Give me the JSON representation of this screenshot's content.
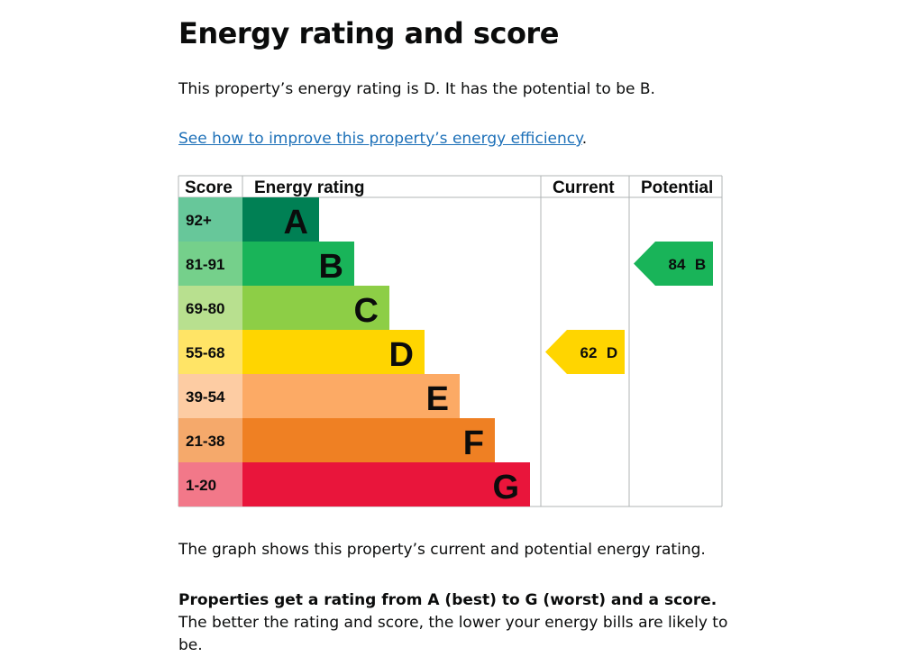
{
  "heading": "Energy rating and score",
  "intro": "This property’s energy rating is D. It has the potential to be B.",
  "link": {
    "text": "See how to improve this property’s energy efficiency",
    "suffix": "."
  },
  "graph_note": "The graph shows this property’s current and potential energy rating.",
  "explanation": {
    "bold": "Properties get a rating from A (best) to G (worst) and a score.",
    "rest": " The better the rating and score, the lower your energy bills are likely to be."
  },
  "chart_data": {
    "type": "bar",
    "columns": [
      "Score",
      "Energy rating",
      "Current",
      "Potential"
    ],
    "bands": [
      {
        "score": "92+",
        "letter": "A",
        "color": "#008054",
        "score_bg": "#67c79a"
      },
      {
        "score": "81-91",
        "letter": "B",
        "color": "#19b459",
        "score_bg": "#75d08b"
      },
      {
        "score": "69-80",
        "letter": "C",
        "color": "#8dce46",
        "score_bg": "#b8e08f"
      },
      {
        "score": "55-68",
        "letter": "D",
        "color": "#ffd500",
        "score_bg": "#ffe466"
      },
      {
        "score": "39-54",
        "letter": "E",
        "color": "#fcaa65",
        "score_bg": "#fdcca3"
      },
      {
        "score": "21-38",
        "letter": "F",
        "color": "#ef8023",
        "score_bg": "#f5a96b"
      },
      {
        "score": "1-20",
        "letter": "G",
        "color": "#e9153b",
        "score_bg": "#f27889"
      }
    ],
    "current": {
      "score": 62,
      "rating": "D",
      "color": "#ffd500"
    },
    "potential": {
      "score": 84,
      "rating": "B",
      "color": "#19b459"
    }
  }
}
